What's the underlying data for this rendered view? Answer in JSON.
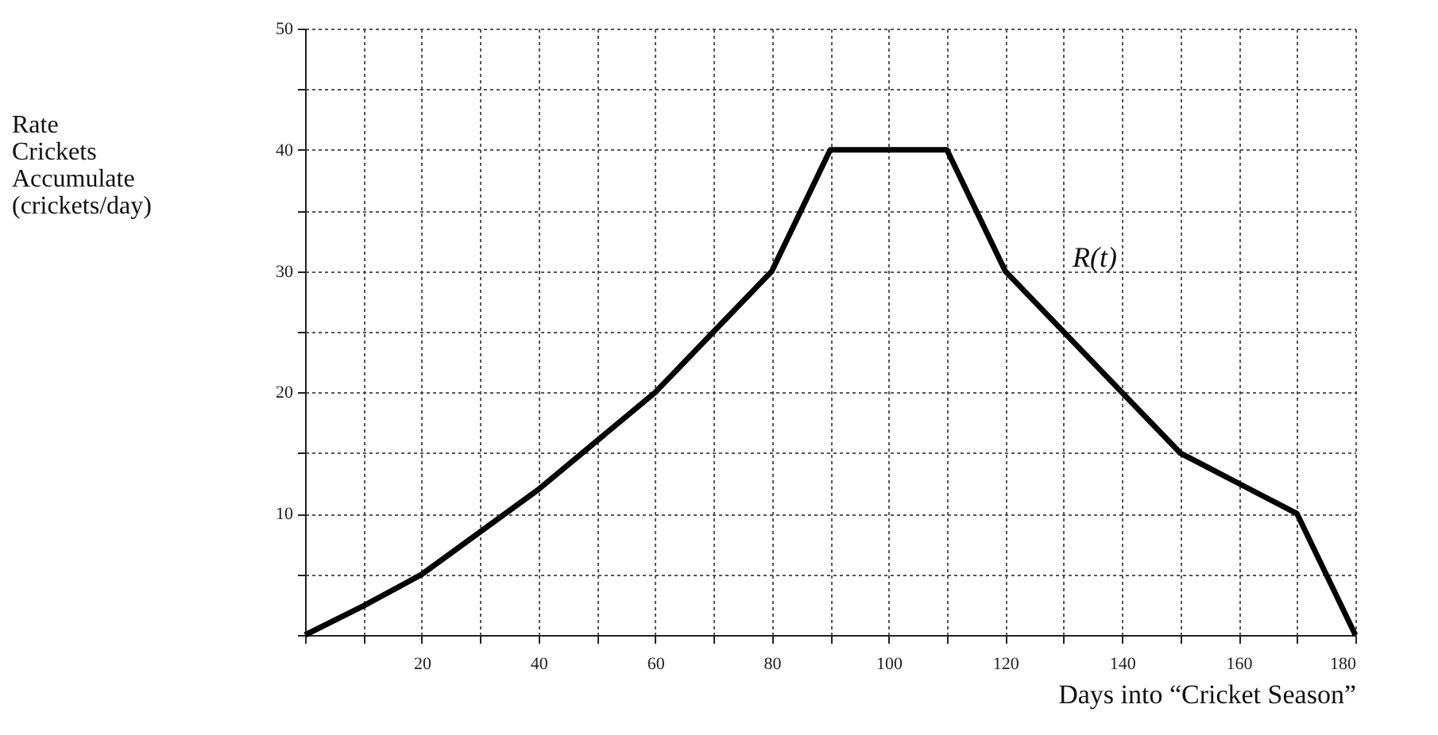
{
  "chart_data": {
    "type": "line",
    "xlabel": "Days into “Cricket Season”",
    "ylabel": "Rate\nCrickets\nAccumulate\n(crickets/day)",
    "x": [
      0,
      10,
      20,
      30,
      40,
      50,
      60,
      70,
      80,
      90,
      110,
      120,
      150,
      160,
      170,
      180
    ],
    "series": [
      {
        "color": "#000000",
        "values": [
          0,
          2.4,
          5,
          8.5,
          12,
          16,
          20,
          25,
          30,
          40,
          40,
          30,
          15,
          12.5,
          10,
          0
        ]
      }
    ],
    "xlim": [
      0,
      180
    ],
    "ylim": [
      0,
      50
    ],
    "xticks": [
      {
        "value": 0,
        "label": null
      },
      {
        "value": 10,
        "label": null
      },
      20,
      {
        "value": 30,
        "label": null
      },
      40,
      {
        "value": 50,
        "label": null
      },
      60,
      {
        "value": 70,
        "label": null
      },
      80,
      {
        "value": 90,
        "label": null
      },
      100,
      {
        "value": 110,
        "label": null
      },
      120,
      {
        "value": 130,
        "label": null
      },
      140,
      {
        "value": 150,
        "label": null
      },
      160,
      {
        "value": 170,
        "label": null
      },
      180
    ],
    "yticks": [
      {
        "value": 0,
        "label": null
      },
      {
        "value": 5,
        "label": null
      },
      10,
      {
        "value": 15,
        "label": null
      },
      20,
      {
        "value": 25,
        "label": null
      },
      30,
      {
        "value": 35,
        "label": null
      },
      40,
      {
        "value": 45,
        "label": null
      },
      50
    ],
    "annotations": [
      "R(t)"
    ],
    "grid": true,
    "marker": "none",
    "line_style": "solid"
  }
}
